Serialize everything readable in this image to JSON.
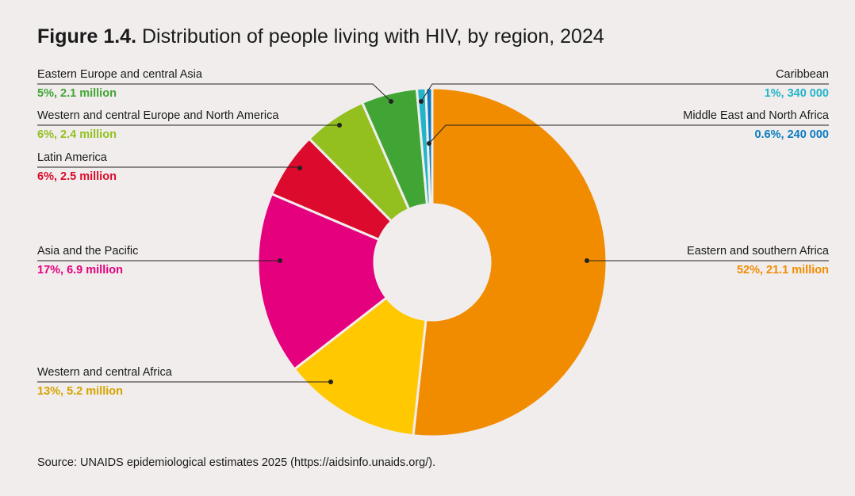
{
  "chart_data": {
    "type": "pie",
    "variant": "donut",
    "title_prefix": "Figure 1.4.",
    "title": "Distribution of people living with HIV, by region, 2024",
    "unit": "people living with HIV",
    "slices": [
      {
        "label": "Eastern and southern Africa",
        "percent": 52,
        "value_millions": 21.1,
        "value_text": "52%, 21.1 million",
        "color": "#f18c00",
        "text_color": "#f18c00"
      },
      {
        "label": "Western and central Africa",
        "percent": 13,
        "value_millions": 5.2,
        "value_text": "13%, 5.2 million",
        "color": "#ffc800",
        "text_color": "#d4a300"
      },
      {
        "label": "Asia and the Pacific",
        "percent": 17,
        "value_millions": 6.9,
        "value_text": "17%, 6.9 million",
        "color": "#e5007d",
        "text_color": "#e5007d"
      },
      {
        "label": "Latin America",
        "percent": 6,
        "value_millions": 2.5,
        "value_text": "6%, 2.5 million",
        "color": "#dc0a2c",
        "text_color": "#dc0a2c"
      },
      {
        "label": "Western and central Europe and North America",
        "percent": 6,
        "value_millions": 2.4,
        "value_text": "6%, 2.4 million",
        "color": "#93c01f",
        "text_color": "#93c01f"
      },
      {
        "label": "Eastern Europe and central Asia",
        "percent": 5,
        "value_millions": 2.1,
        "value_text": "5%, 2.1 million",
        "color": "#41a535",
        "text_color": "#41a535"
      },
      {
        "label": "Caribbean",
        "percent": 1,
        "value_millions": 0.34,
        "value_text": "1%, 340 000",
        "color": "#22b5c8",
        "text_color": "#22b5c8"
      },
      {
        "label": "Middle East and North Africa",
        "percent": 0.6,
        "value_millions": 0.24,
        "value_text": "0.6%, 240 000",
        "color": "#0a7cc1",
        "text_color": "#0a7cc1"
      }
    ],
    "legend": "leader-line labels"
  },
  "source": "Source: UNAIDS epidemiological estimates 2025 (https://aidsinfo.unaids.org/)."
}
